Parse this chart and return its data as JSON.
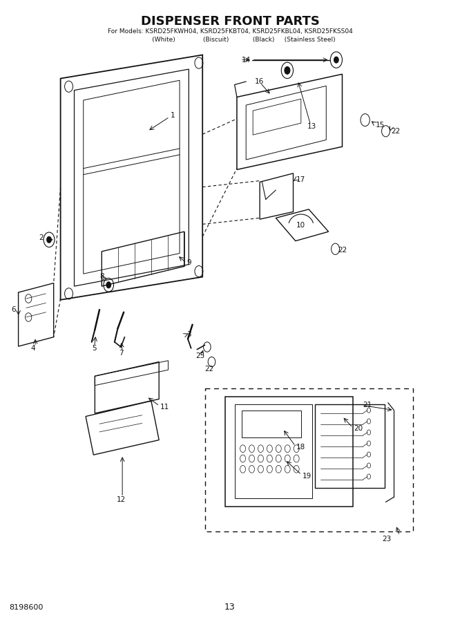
{
  "title": "DISPENSER FRONT PARTS",
  "subtitle1": "For Models: KSRD25FKWH04, KSRD25FKBT04, KSRD25FKBL04, KSRD25FKSS04",
  "subtitle2": "              (White)              (Biscuit)            (Black)     (Stainless Steel)",
  "page_number": "13",
  "doc_number": "8198600",
  "bg": "#ffffff",
  "lc": "#111111",
  "title_fontsize": 13,
  "sub_fontsize": 6.5,
  "label_fontsize": 7.5
}
